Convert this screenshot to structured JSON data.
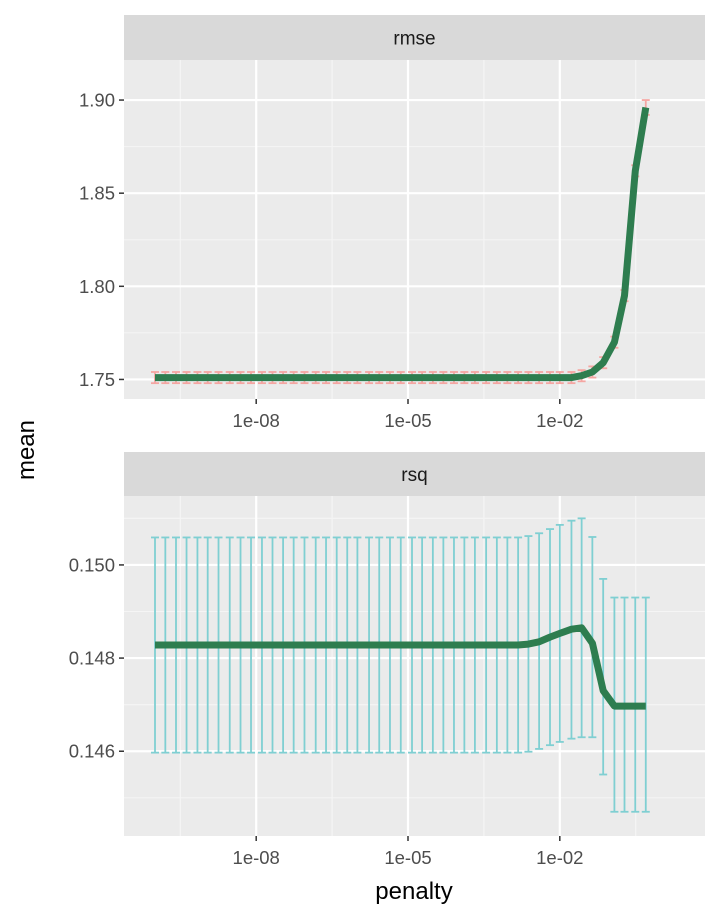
{
  "chart_data": [
    {
      "type": "line",
      "facet_label": "rmse",
      "xlabel": "penalty",
      "ylabel": "mean",
      "x_scale": "log10",
      "xlim": [
        1e-10,
        1
      ],
      "x_ticks": [
        1e-08,
        1e-05,
        0.01
      ],
      "x_tick_labels": [
        "1e-08",
        "1e-05",
        "1e-02"
      ],
      "ylim": [
        1.7395,
        1.9215
      ],
      "y_ticks": [
        1.75,
        1.8,
        1.85,
        1.9
      ],
      "y_tick_labels": [
        "1.75",
        "1.80",
        "1.85",
        "1.90"
      ],
      "grid": true,
      "line_color": "#2e7d4f",
      "errorbar_color": "#f4a6a2",
      "series": [
        {
          "x": [
            1e-10,
            1.6e-10,
            2.6e-10,
            4.2e-10,
            6.9e-10,
            1.1e-09,
            1.8e-09,
            3e-09,
            4.9e-09,
            7.9e-09,
            1.3e-08,
            2.1e-08,
            3.4e-08,
            5.5e-08,
            9e-08,
            1.5e-07,
            2.4e-07,
            3.9e-07,
            6.3e-07,
            1e-06,
            1.7e-06,
            2.7e-06,
            4.4e-06,
            7.2e-06,
            1.2e-05,
            1.9e-05,
            3.1e-05,
            5e-05,
            8.1e-05,
            0.00013,
            0.00021,
            0.00035,
            0.00057,
            0.00092,
            0.0015,
            0.0024,
            0.0039,
            0.0064,
            0.01,
            0.017,
            0.027,
            0.044,
            0.072,
            0.12,
            0.19,
            0.31,
            0.5
          ],
          "values": [
            1.751,
            1.751,
            1.751,
            1.751,
            1.751,
            1.751,
            1.751,
            1.751,
            1.751,
            1.751,
            1.751,
            1.751,
            1.751,
            1.751,
            1.751,
            1.751,
            1.751,
            1.751,
            1.751,
            1.751,
            1.751,
            1.751,
            1.751,
            1.751,
            1.751,
            1.751,
            1.751,
            1.751,
            1.751,
            1.751,
            1.751,
            1.751,
            1.751,
            1.751,
            1.751,
            1.751,
            1.751,
            1.751,
            1.751,
            1.751,
            1.752,
            1.754,
            1.759,
            1.77,
            1.795,
            1.862,
            1.896
          ],
          "lower": [
            1.748,
            1.748,
            1.748,
            1.748,
            1.748,
            1.748,
            1.748,
            1.748,
            1.748,
            1.748,
            1.748,
            1.748,
            1.748,
            1.748,
            1.748,
            1.748,
            1.748,
            1.748,
            1.748,
            1.748,
            1.748,
            1.748,
            1.748,
            1.748,
            1.748,
            1.748,
            1.748,
            1.748,
            1.748,
            1.748,
            1.748,
            1.748,
            1.748,
            1.748,
            1.748,
            1.748,
            1.748,
            1.748,
            1.748,
            1.748,
            1.749,
            1.751,
            1.756,
            1.767,
            1.792,
            1.859,
            1.892
          ],
          "upper": [
            1.754,
            1.754,
            1.754,
            1.754,
            1.754,
            1.754,
            1.754,
            1.754,
            1.754,
            1.754,
            1.754,
            1.754,
            1.754,
            1.754,
            1.754,
            1.754,
            1.754,
            1.754,
            1.754,
            1.754,
            1.754,
            1.754,
            1.754,
            1.754,
            1.754,
            1.754,
            1.754,
            1.754,
            1.754,
            1.754,
            1.754,
            1.754,
            1.754,
            1.754,
            1.754,
            1.754,
            1.754,
            1.754,
            1.754,
            1.754,
            1.755,
            1.757,
            1.762,
            1.773,
            1.798,
            1.865,
            1.9
          ]
        }
      ]
    },
    {
      "type": "line",
      "facet_label": "rsq",
      "xlabel": "penalty",
      "ylabel": "mean",
      "x_scale": "log10",
      "xlim": [
        1e-10,
        1
      ],
      "x_ticks": [
        1e-08,
        1e-05,
        0.01
      ],
      "x_tick_labels": [
        "1e-08",
        "1e-05",
        "1e-02"
      ],
      "ylim": [
        0.14418,
        0.15148
      ],
      "y_ticks": [
        0.146,
        0.148,
        0.15
      ],
      "y_tick_labels": [
        "0.146",
        "0.148",
        "0.150"
      ],
      "grid": true,
      "line_color": "#2e7d4f",
      "errorbar_color": "#7fcfd2",
      "series": [
        {
          "x": [
            1e-10,
            1.6e-10,
            2.6e-10,
            4.2e-10,
            6.9e-10,
            1.1e-09,
            1.8e-09,
            3e-09,
            4.9e-09,
            7.9e-09,
            1.3e-08,
            2.1e-08,
            3.4e-08,
            5.5e-08,
            9e-08,
            1.5e-07,
            2.4e-07,
            3.9e-07,
            6.3e-07,
            1e-06,
            1.7e-06,
            2.7e-06,
            4.4e-06,
            7.2e-06,
            1.2e-05,
            1.9e-05,
            3.1e-05,
            5e-05,
            8.1e-05,
            0.00013,
            0.00021,
            0.00035,
            0.00057,
            0.00092,
            0.0015,
            0.0024,
            0.0039,
            0.0064,
            0.01,
            0.017,
            0.027,
            0.044,
            0.072,
            0.12,
            0.19,
            0.31,
            0.5
          ],
          "values": [
            0.14828,
            0.14828,
            0.14828,
            0.14828,
            0.14828,
            0.14828,
            0.14828,
            0.14828,
            0.14828,
            0.14828,
            0.14828,
            0.14828,
            0.14828,
            0.14828,
            0.14828,
            0.14828,
            0.14828,
            0.14828,
            0.14828,
            0.14828,
            0.14828,
            0.14828,
            0.14828,
            0.14828,
            0.14828,
            0.14828,
            0.14828,
            0.14828,
            0.14828,
            0.14828,
            0.14828,
            0.14828,
            0.14828,
            0.14828,
            0.14828,
            0.1483,
            0.14835,
            0.14845,
            0.14853,
            0.14862,
            0.14865,
            0.14832,
            0.1473,
            0.14697,
            0.14697,
            0.14697,
            0.14697
          ],
          "lower": [
            0.14597,
            0.14597,
            0.14597,
            0.14597,
            0.14597,
            0.14597,
            0.14597,
            0.14597,
            0.14597,
            0.14597,
            0.14597,
            0.14597,
            0.14597,
            0.14597,
            0.14597,
            0.14597,
            0.14597,
            0.14597,
            0.14597,
            0.14597,
            0.14597,
            0.14597,
            0.14597,
            0.14597,
            0.14597,
            0.14597,
            0.14597,
            0.14597,
            0.14597,
            0.14597,
            0.14597,
            0.14597,
            0.14597,
            0.14597,
            0.14597,
            0.14599,
            0.14605,
            0.14613,
            0.1462,
            0.14627,
            0.1463,
            0.1463,
            0.1455,
            0.1447,
            0.1447,
            0.1447,
            0.1447
          ],
          "upper": [
            0.15059,
            0.15059,
            0.15059,
            0.15059,
            0.15059,
            0.15059,
            0.15059,
            0.15059,
            0.15059,
            0.15059,
            0.15059,
            0.15059,
            0.15059,
            0.15059,
            0.15059,
            0.15059,
            0.15059,
            0.15059,
            0.15059,
            0.15059,
            0.15059,
            0.15059,
            0.15059,
            0.15059,
            0.15059,
            0.15059,
            0.15059,
            0.15059,
            0.15059,
            0.15059,
            0.15059,
            0.15059,
            0.15059,
            0.15059,
            0.15059,
            0.15062,
            0.15068,
            0.15077,
            0.15086,
            0.15095,
            0.151,
            0.1506,
            0.1497,
            0.1493,
            0.1493,
            0.1493,
            0.1493
          ]
        }
      ]
    }
  ]
}
